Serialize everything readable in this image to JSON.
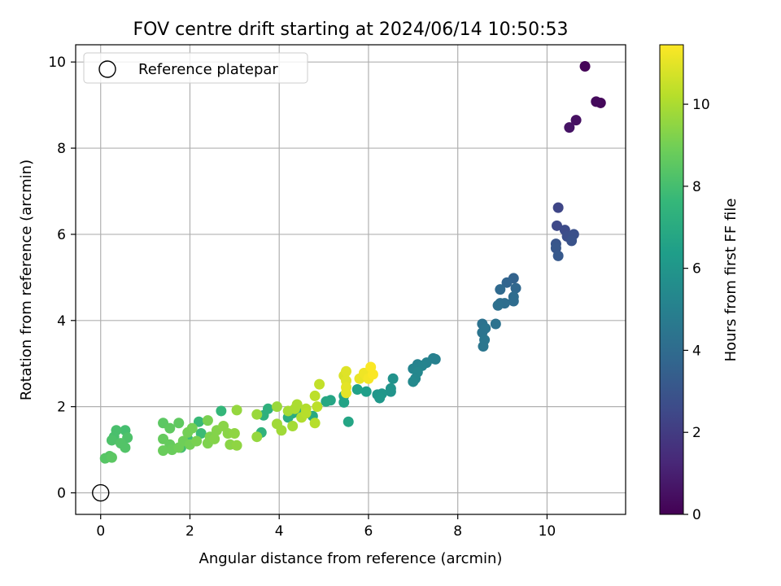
{
  "chart_data": {
    "type": "scatter",
    "title": "FOV centre drift starting at 2024/06/14 10:50:53",
    "xlabel": "Angular distance from reference (arcmin)",
    "ylabel": "Rotation from reference (arcmin)",
    "xlim": [
      -0.56,
      11.76
    ],
    "ylim": [
      -0.5,
      10.4
    ],
    "xticks": [
      "0",
      "2",
      "4",
      "6",
      "8",
      "10"
    ],
    "xtick_values": [
      0,
      2,
      4,
      6,
      8,
      10
    ],
    "yticks": [
      "0",
      "2",
      "4",
      "6",
      "8",
      "10"
    ],
    "ytick_values": [
      0,
      2,
      4,
      6,
      8,
      10
    ],
    "grid": true,
    "legend": {
      "location": "upper-left",
      "entries": [
        "Reference platepar"
      ]
    },
    "reference_point": {
      "x": 0,
      "y": 0,
      "label": "Reference platepar"
    },
    "colormap": "viridis",
    "colorbar": {
      "label": "Hours from first FF file",
      "range": [
        0,
        11.45
      ],
      "ticks": [
        "0",
        "2",
        "4",
        "6",
        "8",
        "10"
      ],
      "tick_values": [
        0,
        2,
        4,
        6,
        8,
        10
      ]
    },
    "points": [
      {
        "x": 10.85,
        "y": 9.9,
        "h": 0.1
      },
      {
        "x": 11.2,
        "y": 9.05,
        "h": 0.2
      },
      {
        "x": 11.1,
        "y": 9.08,
        "h": 0.3
      },
      {
        "x": 10.65,
        "y": 8.65,
        "h": 0.5
      },
      {
        "x": 10.5,
        "y": 8.48,
        "h": 0.6
      },
      {
        "x": 10.25,
        "y": 6.62,
        "h": 2.4
      },
      {
        "x": 10.22,
        "y": 6.2,
        "h": 2.5
      },
      {
        "x": 10.4,
        "y": 6.1,
        "h": 2.6
      },
      {
        "x": 10.45,
        "y": 5.95,
        "h": 2.7
      },
      {
        "x": 10.6,
        "y": 6.0,
        "h": 2.8
      },
      {
        "x": 10.55,
        "y": 5.85,
        "h": 2.9
      },
      {
        "x": 10.2,
        "y": 5.78,
        "h": 3.0
      },
      {
        "x": 10.2,
        "y": 5.68,
        "h": 3.1
      },
      {
        "x": 10.25,
        "y": 5.5,
        "h": 3.2
      },
      {
        "x": 9.25,
        "y": 4.98,
        "h": 3.6
      },
      {
        "x": 9.1,
        "y": 4.88,
        "h": 3.7
      },
      {
        "x": 9.3,
        "y": 4.75,
        "h": 3.8
      },
      {
        "x": 8.95,
        "y": 4.72,
        "h": 3.9
      },
      {
        "x": 9.25,
        "y": 4.55,
        "h": 4.0
      },
      {
        "x": 9.25,
        "y": 4.45,
        "h": 4.0
      },
      {
        "x": 9.05,
        "y": 4.4,
        "h": 4.1
      },
      {
        "x": 8.95,
        "y": 4.4,
        "h": 4.1
      },
      {
        "x": 8.9,
        "y": 4.35,
        "h": 4.2
      },
      {
        "x": 8.85,
        "y": 3.92,
        "h": 4.3
      },
      {
        "x": 8.55,
        "y": 3.92,
        "h": 4.3
      },
      {
        "x": 8.62,
        "y": 3.82,
        "h": 4.4
      },
      {
        "x": 8.55,
        "y": 3.72,
        "h": 4.4
      },
      {
        "x": 8.6,
        "y": 3.55,
        "h": 4.5
      },
      {
        "x": 8.57,
        "y": 3.4,
        "h": 4.5
      },
      {
        "x": 7.45,
        "y": 3.12,
        "h": 5.0
      },
      {
        "x": 7.5,
        "y": 3.1,
        "h": 5.0
      },
      {
        "x": 7.3,
        "y": 3.02,
        "h": 5.1
      },
      {
        "x": 7.1,
        "y": 2.98,
        "h": 5.1
      },
      {
        "x": 7.2,
        "y": 2.95,
        "h": 5.2
      },
      {
        "x": 7.0,
        "y": 2.88,
        "h": 5.2
      },
      {
        "x": 7.1,
        "y": 2.8,
        "h": 5.3
      },
      {
        "x": 7.05,
        "y": 2.65,
        "h": 5.3
      },
      {
        "x": 7.0,
        "y": 2.58,
        "h": 5.4
      },
      {
        "x": 6.55,
        "y": 2.65,
        "h": 5.8
      },
      {
        "x": 6.5,
        "y": 2.42,
        "h": 5.9
      },
      {
        "x": 6.5,
        "y": 2.35,
        "h": 5.9
      },
      {
        "x": 6.3,
        "y": 2.3,
        "h": 6.0
      },
      {
        "x": 6.2,
        "y": 2.28,
        "h": 6.0
      },
      {
        "x": 6.25,
        "y": 2.2,
        "h": 6.1
      },
      {
        "x": 5.95,
        "y": 2.35,
        "h": 6.4
      },
      {
        "x": 5.75,
        "y": 2.4,
        "h": 6.5
      },
      {
        "x": 5.45,
        "y": 2.25,
        "h": 6.6
      },
      {
        "x": 5.45,
        "y": 2.1,
        "h": 6.6
      },
      {
        "x": 5.55,
        "y": 1.65,
        "h": 6.7
      },
      {
        "x": 5.15,
        "y": 2.15,
        "h": 6.7
      },
      {
        "x": 5.05,
        "y": 2.12,
        "h": 6.8
      },
      {
        "x": 4.75,
        "y": 1.78,
        "h": 6.9
      },
      {
        "x": 4.5,
        "y": 1.88,
        "h": 7.0
      },
      {
        "x": 4.3,
        "y": 1.85,
        "h": 7.0
      },
      {
        "x": 4.2,
        "y": 1.75,
        "h": 7.1
      },
      {
        "x": 3.65,
        "y": 1.8,
        "h": 7.3
      },
      {
        "x": 3.75,
        "y": 1.95,
        "h": 7.3
      },
      {
        "x": 3.6,
        "y": 1.4,
        "h": 7.4
      },
      {
        "x": 2.7,
        "y": 1.9,
        "h": 7.6
      },
      {
        "x": 2.2,
        "y": 1.65,
        "h": 7.7
      },
      {
        "x": 2.25,
        "y": 1.38,
        "h": 7.8
      },
      {
        "x": 1.95,
        "y": 1.25,
        "h": 7.8
      },
      {
        "x": 1.8,
        "y": 1.05,
        "h": 7.9
      },
      {
        "x": 0.55,
        "y": 1.45,
        "h": 8.0
      },
      {
        "x": 0.35,
        "y": 1.45,
        "h": 8.1
      },
      {
        "x": 0.3,
        "y": 1.3,
        "h": 8.1
      },
      {
        "x": 0.6,
        "y": 1.28,
        "h": 8.2
      },
      {
        "x": 0.25,
        "y": 1.22,
        "h": 8.2
      },
      {
        "x": 0.45,
        "y": 1.15,
        "h": 8.3
      },
      {
        "x": 0.55,
        "y": 1.05,
        "h": 8.3
      },
      {
        "x": 0.2,
        "y": 0.85,
        "h": 8.4
      },
      {
        "x": 0.1,
        "y": 0.8,
        "h": 8.4
      },
      {
        "x": 0.25,
        "y": 0.82,
        "h": 8.5
      },
      {
        "x": 1.4,
        "y": 1.62,
        "h": 8.5
      },
      {
        "x": 1.75,
        "y": 1.62,
        "h": 8.6
      },
      {
        "x": 1.55,
        "y": 1.5,
        "h": 8.6
      },
      {
        "x": 1.4,
        "y": 1.25,
        "h": 8.7
      },
      {
        "x": 1.55,
        "y": 1.12,
        "h": 8.7
      },
      {
        "x": 1.4,
        "y": 0.98,
        "h": 8.8
      },
      {
        "x": 1.6,
        "y": 1.0,
        "h": 8.8
      },
      {
        "x": 1.75,
        "y": 1.05,
        "h": 8.9
      },
      {
        "x": 1.85,
        "y": 1.2,
        "h": 8.9
      },
      {
        "x": 1.95,
        "y": 1.4,
        "h": 9.0
      },
      {
        "x": 2.05,
        "y": 1.5,
        "h": 9.0
      },
      {
        "x": 2.0,
        "y": 1.12,
        "h": 9.0
      },
      {
        "x": 2.15,
        "y": 1.2,
        "h": 9.1
      },
      {
        "x": 2.4,
        "y": 1.68,
        "h": 9.1
      },
      {
        "x": 2.45,
        "y": 1.3,
        "h": 9.2
      },
      {
        "x": 2.4,
        "y": 1.15,
        "h": 9.2
      },
      {
        "x": 2.55,
        "y": 1.25,
        "h": 9.3
      },
      {
        "x": 2.6,
        "y": 1.45,
        "h": 9.3
      },
      {
        "x": 2.75,
        "y": 1.55,
        "h": 9.4
      },
      {
        "x": 2.85,
        "y": 1.38,
        "h": 9.4
      },
      {
        "x": 2.9,
        "y": 1.12,
        "h": 9.4
      },
      {
        "x": 3.05,
        "y": 1.1,
        "h": 9.5
      },
      {
        "x": 3.0,
        "y": 1.38,
        "h": 9.5
      },
      {
        "x": 3.05,
        "y": 1.92,
        "h": 9.6
      },
      {
        "x": 3.5,
        "y": 1.3,
        "h": 9.6
      },
      {
        "x": 3.5,
        "y": 1.82,
        "h": 9.7
      },
      {
        "x": 3.95,
        "y": 2.0,
        "h": 9.7
      },
      {
        "x": 3.95,
        "y": 1.6,
        "h": 9.8
      },
      {
        "x": 4.05,
        "y": 1.45,
        "h": 9.8
      },
      {
        "x": 4.2,
        "y": 1.9,
        "h": 9.9
      },
      {
        "x": 4.3,
        "y": 1.55,
        "h": 9.9
      },
      {
        "x": 4.35,
        "y": 1.95,
        "h": 10.0
      },
      {
        "x": 4.4,
        "y": 2.05,
        "h": 10.0
      },
      {
        "x": 4.5,
        "y": 1.75,
        "h": 10.1
      },
      {
        "x": 4.6,
        "y": 1.95,
        "h": 10.1
      },
      {
        "x": 4.6,
        "y": 1.85,
        "h": 10.2
      },
      {
        "x": 4.8,
        "y": 1.62,
        "h": 10.2
      },
      {
        "x": 4.8,
        "y": 2.25,
        "h": 10.3
      },
      {
        "x": 4.85,
        "y": 2.0,
        "h": 10.3
      },
      {
        "x": 4.9,
        "y": 2.52,
        "h": 10.4
      },
      {
        "x": 5.45,
        "y": 2.72,
        "h": 10.8
      },
      {
        "x": 5.5,
        "y": 2.82,
        "h": 10.9
      },
      {
        "x": 5.5,
        "y": 2.6,
        "h": 10.9
      },
      {
        "x": 5.5,
        "y": 2.45,
        "h": 11.0
      },
      {
        "x": 5.5,
        "y": 2.32,
        "h": 11.0
      },
      {
        "x": 5.8,
        "y": 2.65,
        "h": 11.1
      },
      {
        "x": 5.9,
        "y": 2.78,
        "h": 11.2
      },
      {
        "x": 5.95,
        "y": 2.72,
        "h": 11.2
      },
      {
        "x": 6.0,
        "y": 2.65,
        "h": 11.3
      },
      {
        "x": 6.05,
        "y": 2.92,
        "h": 11.4
      },
      {
        "x": 6.1,
        "y": 2.75,
        "h": 11.4
      }
    ]
  }
}
